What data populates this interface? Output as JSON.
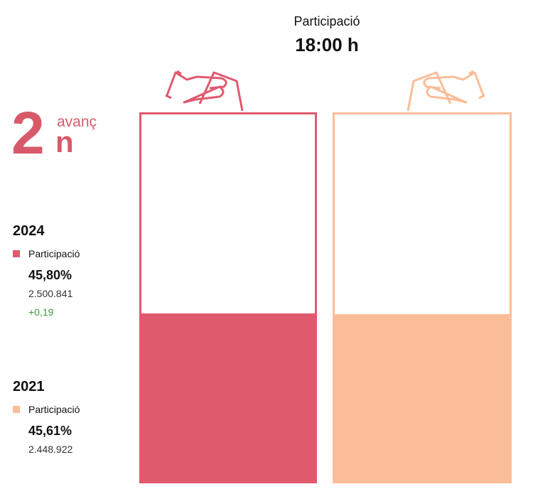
{
  "chart_data": {
    "type": "bar",
    "title": "Participació",
    "subtitle": "18:00 h",
    "badge": {
      "number": "2",
      "suffix": "n",
      "word": "avanç"
    },
    "ylim": [
      0,
      100
    ],
    "series": [
      {
        "name": "2024",
        "label": "Participació",
        "color": "#e05a6e",
        "values": [
          45.8
        ],
        "value_labels": [
          "45,80%"
        ],
        "votes": "2.500.841",
        "change": "+0,19"
      },
      {
        "name": "2021",
        "label": "Participació",
        "color": "#fbbd98",
        "values": [
          45.61
        ],
        "value_labels": [
          "45,61%"
        ],
        "votes": "2.448.922"
      }
    ]
  }
}
